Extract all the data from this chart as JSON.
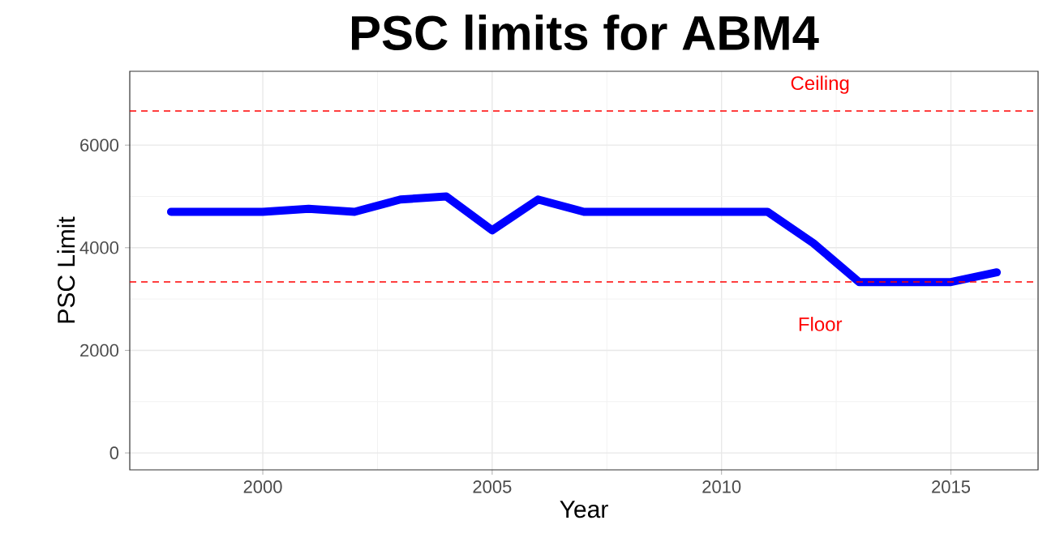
{
  "chart_data": {
    "type": "line",
    "title": "PSC limits for ABM4",
    "xlabel": "Year",
    "ylabel": "PSC Limit",
    "x": [
      1998,
      1999,
      2000,
      2001,
      2002,
      2003,
      2004,
      2005,
      2006,
      2007,
      2008,
      2009,
      2010,
      2011,
      2012,
      2013,
      2014,
      2015,
      2016
    ],
    "series": [
      {
        "color": "#0000ff",
        "values": [
          4700,
          4700,
          4700,
          4760,
          4700,
          4940,
          5000,
          4340,
          4940,
          4700,
          4700,
          4700,
          4700,
          4700,
          4090,
          3330,
          3330,
          3330,
          3520
        ]
      }
    ],
    "xlim": [
      1997.1,
      2016.9
    ],
    "ylim": [
      -330,
      7440
    ],
    "xticks": [
      2000,
      2005,
      2010,
      2015
    ],
    "yticks": [
      0,
      2000,
      4000,
      6000
    ],
    "grid": true,
    "line_style": "solid",
    "marker": "none",
    "ref_lines": [
      {
        "axis": "y",
        "value": 6667,
        "color": "#ff0000",
        "line_style": "dashed",
        "label": "Ceiling"
      },
      {
        "axis": "y",
        "value": 3333,
        "color": "#ff0000",
        "line_style": "dashed",
        "label": "Floor"
      }
    ]
  }
}
